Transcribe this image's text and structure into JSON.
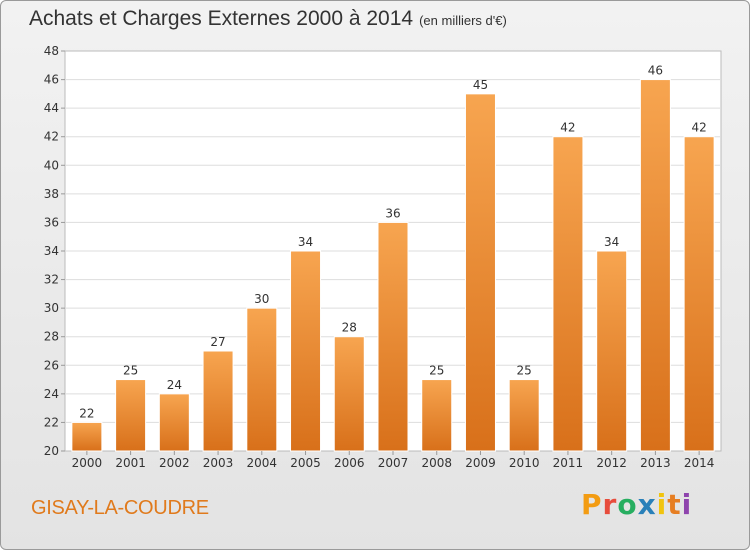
{
  "header": {
    "title": "Achats et Charges Externes 2000 à 2014",
    "subtitle": "(en milliers d'€)"
  },
  "footer": {
    "commune": "GISAY-LA-COUDRE",
    "brand_letters": [
      "P",
      "r",
      "o",
      "x",
      "i",
      "t",
      "i"
    ],
    "brand_colors": [
      "#f39c12",
      "#e74c3c",
      "#27ae60",
      "#2980b9",
      "#f1c40f",
      "#e67e22",
      "#8e44ad"
    ]
  },
  "chart_data": {
    "type": "bar",
    "title": "Achats et Charges Externes 2000 à 2014",
    "subtitle": "(en milliers d'€)",
    "categories": [
      "2000",
      "2001",
      "2002",
      "2003",
      "2004",
      "2005",
      "2006",
      "2007",
      "2008",
      "2009",
      "2010",
      "2011",
      "2012",
      "2013",
      "2014"
    ],
    "values": [
      22,
      25,
      24,
      27,
      30,
      34,
      28,
      36,
      25,
      45,
      25,
      42,
      34,
      46,
      42
    ],
    "ylim": [
      20,
      48
    ],
    "yticks": [
      20,
      22,
      24,
      26,
      28,
      30,
      32,
      34,
      36,
      38,
      40,
      42,
      44,
      46,
      48
    ],
    "grid": true,
    "bar_color_top": "#f7a550",
    "bar_color_bottom": "#d8701a",
    "xlabel": "",
    "ylabel": ""
  }
}
